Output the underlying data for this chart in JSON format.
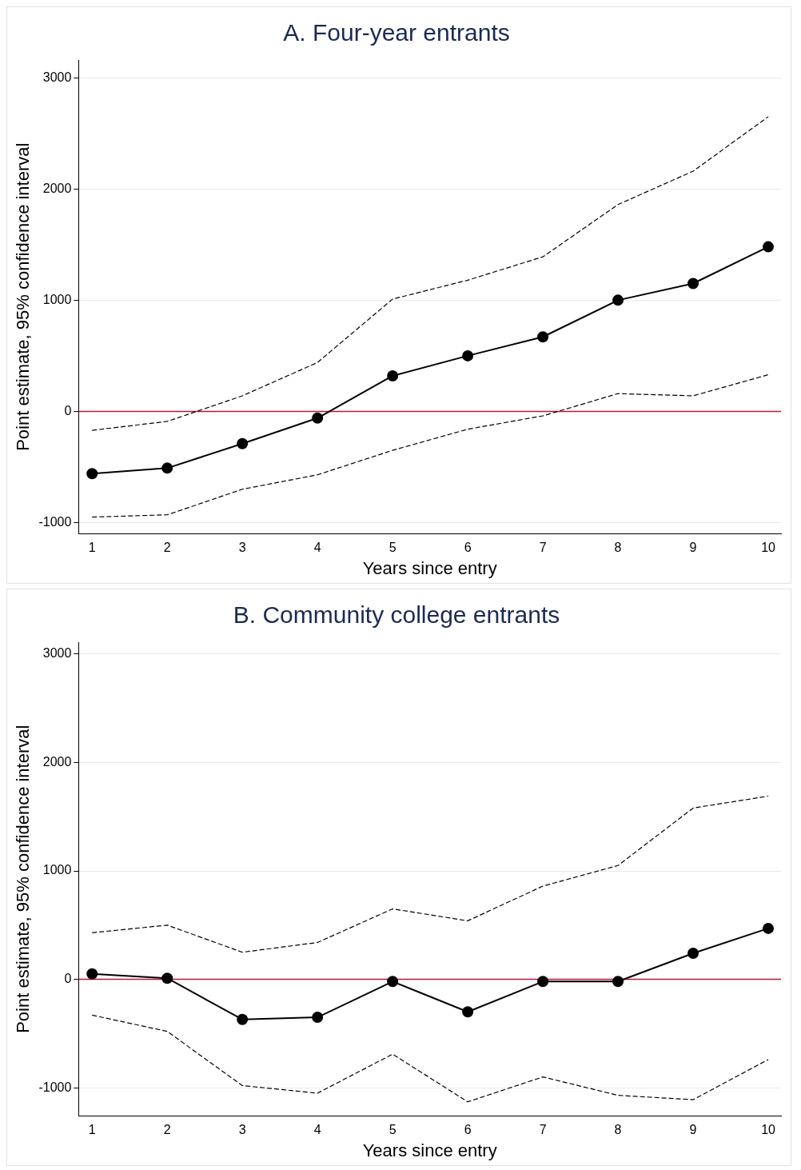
{
  "chart_data": [
    {
      "type": "line",
      "title": "A. Four-year entrants",
      "xlabel": "Years since entry",
      "ylabel": "Point estimate, 95% confidence interval",
      "x": [
        1,
        2,
        3,
        4,
        5,
        6,
        7,
        8,
        9,
        10
      ],
      "xlim": [
        0.82,
        10.17
      ],
      "xticks": [
        1,
        2,
        3,
        4,
        5,
        6,
        7,
        8,
        9,
        10
      ],
      "ylim": [
        -1100,
        3160
      ],
      "yticks": [
        -1000,
        0,
        1000,
        2000,
        3000
      ],
      "grid": "y",
      "legend": false,
      "series": [
        {
          "color": "#000000",
          "marker": "circle",
          "line_style": "solid",
          "values": [
            -560,
            -510,
            -290,
            -60,
            320,
            500,
            670,
            1000,
            1150,
            1480
          ]
        },
        {
          "color": "#000000",
          "marker": "none",
          "line_style": "dashed",
          "values": [
            -170,
            -90,
            140,
            440,
            1010,
            1180,
            1390,
            1860,
            2160,
            2650
          ]
        },
        {
          "color": "#000000",
          "marker": "none",
          "line_style": "dashed",
          "values": [
            -950,
            -930,
            -700,
            -570,
            -350,
            -160,
            -40,
            160,
            140,
            330
          ]
        }
      ],
      "ref_lines": [
        {
          "axis": "y",
          "value": 0,
          "color": "#c0143c"
        }
      ]
    },
    {
      "type": "line",
      "title": "B. Community college entrants",
      "xlabel": "Years since entry",
      "ylabel": "Point estimate, 95% confidence interval",
      "x": [
        1,
        2,
        3,
        4,
        5,
        6,
        7,
        8,
        9,
        10
      ],
      "xlim": [
        0.82,
        10.17
      ],
      "xticks": [
        1,
        2,
        3,
        4,
        5,
        6,
        7,
        8,
        9,
        10
      ],
      "ylim": [
        -1260,
        3110
      ],
      "yticks": [
        -1000,
        0,
        1000,
        2000,
        3000
      ],
      "grid": "y",
      "legend": false,
      "series": [
        {
          "color": "#000000",
          "marker": "circle",
          "line_style": "solid",
          "values": [
            50,
            10,
            -370,
            -350,
            -20,
            -300,
            -20,
            -20,
            240,
            470
          ]
        },
        {
          "color": "#000000",
          "marker": "none",
          "line_style": "dashed",
          "values": [
            430,
            500,
            250,
            340,
            650,
            540,
            860,
            1050,
            1580,
            1690
          ]
        },
        {
          "color": "#000000",
          "marker": "none",
          "line_style": "dashed",
          "values": [
            -330,
            -480,
            -980,
            -1050,
            -690,
            -1130,
            -900,
            -1070,
            -1110,
            -740
          ]
        }
      ],
      "ref_lines": [
        {
          "axis": "y",
          "value": 0,
          "color": "#c0143c"
        }
      ]
    }
  ]
}
